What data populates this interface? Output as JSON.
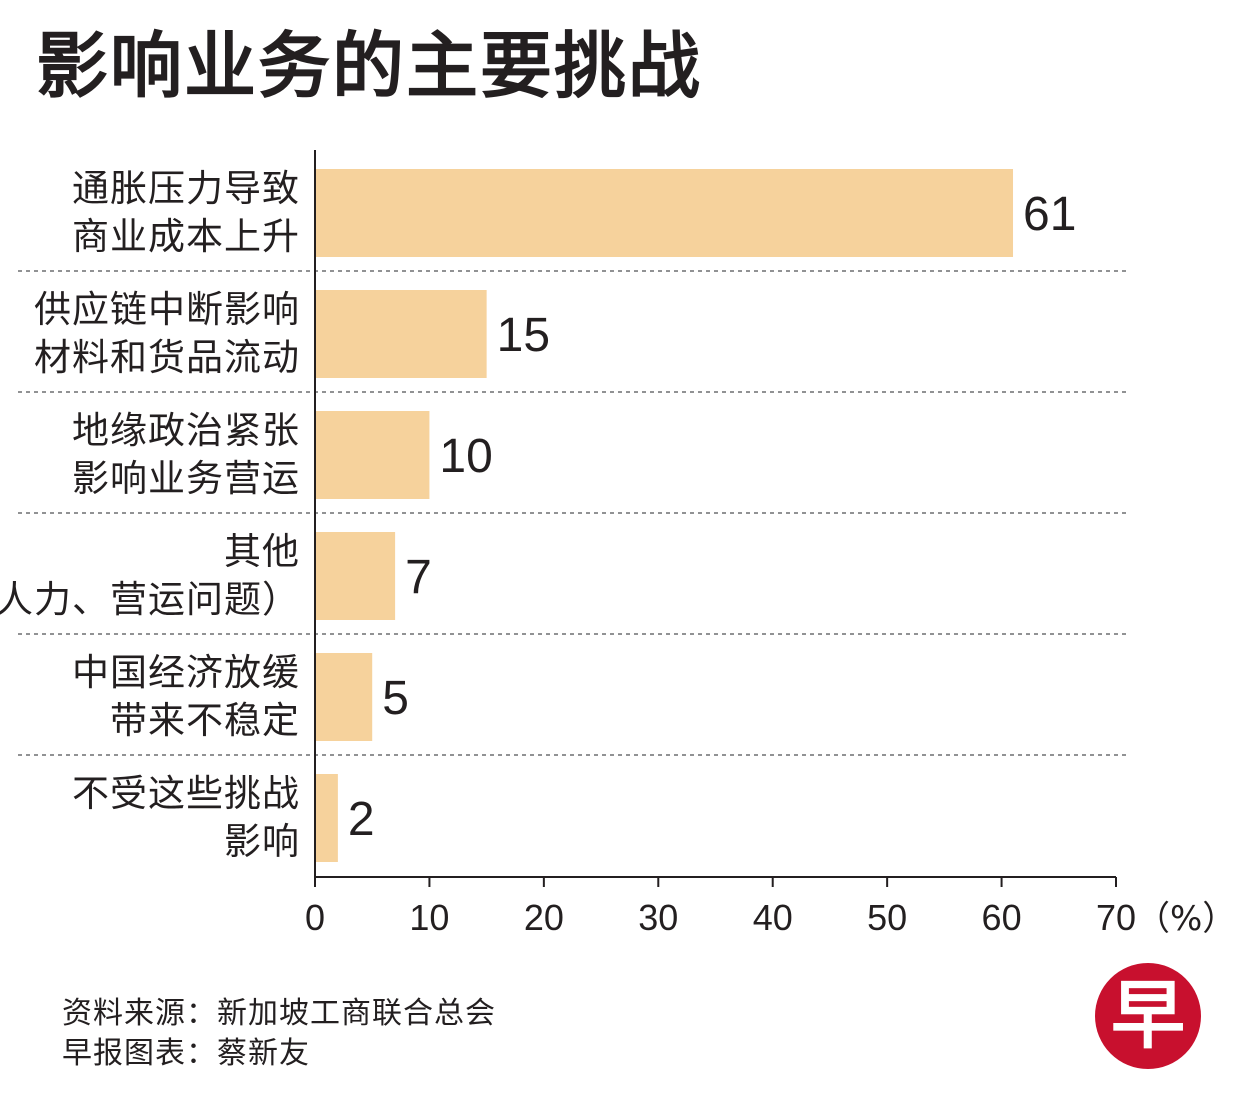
{
  "title": "影响业务的主要挑战",
  "chart_data": {
    "type": "bar",
    "orientation": "horizontal",
    "title": "影响业务的主要挑战",
    "categories": [
      "通胀压力导致\n商业成本上升",
      "供应链中断影响\n材料和货品流动",
      "地缘政治紧张\n影响业务营运",
      "其他\n（人力、营运问题）",
      "中国经济放缓\n带来不稳定",
      "不受这些挑战\n影响"
    ],
    "values": [
      61,
      15,
      10,
      7,
      5,
      2
    ],
    "data_labels": [
      "61",
      "15",
      "10",
      "7",
      "5",
      "2"
    ],
    "x_ticks": [
      "0",
      "10",
      "20",
      "30",
      "40",
      "50",
      "60",
      "70"
    ],
    "x_unit": "（%）",
    "xlim": [
      0,
      70
    ],
    "grid": "dashed separators between categories",
    "bar_color": "#f6d29c"
  },
  "footer": {
    "source": "资料来源：新加坡工商联合总会",
    "credit": "早报图表：蔡新友"
  },
  "logo": {
    "text": "早",
    "color": "#c8102e"
  }
}
